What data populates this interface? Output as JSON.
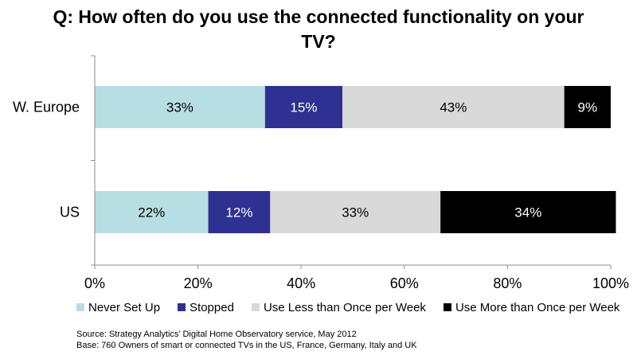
{
  "chart_data": {
    "type": "bar",
    "orientation": "horizontal",
    "stacked": true,
    "title": "Q: How often do you use the connected functionality on your TV?",
    "categories": [
      "W. Europe",
      "US"
    ],
    "series": [
      {
        "name": "Never Set Up",
        "color": "#b7dfe3",
        "values": [
          33,
          22
        ],
        "labels": [
          "33%",
          "22%"
        ]
      },
      {
        "name": "Stopped",
        "color": "#2e3192",
        "values": [
          15,
          12
        ],
        "labels": [
          "15%",
          "12%"
        ]
      },
      {
        "name": "Use Less than Once per Week",
        "color": "#d9d9d9",
        "values": [
          43,
          33
        ],
        "labels": [
          "43%",
          "33%"
        ]
      },
      {
        "name": "Use More than Once per Week",
        "color": "#000000",
        "values": [
          9,
          34
        ],
        "labels": [
          "9%",
          "34%"
        ]
      }
    ],
    "xlim": [
      0,
      100
    ],
    "xticks": [
      "0%",
      "20%",
      "40%",
      "60%",
      "80%",
      "100%"
    ],
    "grid": false,
    "legend_position": "bottom"
  },
  "footnotes": [
    "Source: Strategy Analytics’ Digital  Home Observatory service, May 2012",
    "Base: 760 Owners of smart or connected TVs in the US, France, Germany, Italy and UK"
  ]
}
